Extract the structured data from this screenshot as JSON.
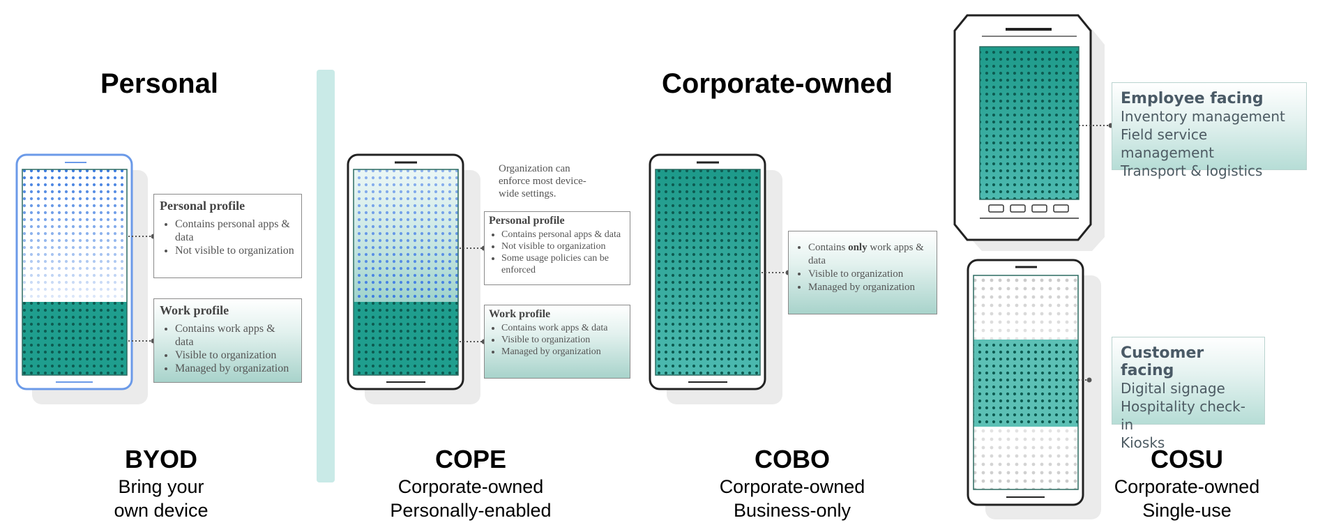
{
  "headings": {
    "personal": "Personal",
    "corporate": "Corporate-owned"
  },
  "modes": [
    {
      "code": "BYOD",
      "line1": "Bring your",
      "line2": "own device"
    },
    {
      "code": "COPE",
      "line1": "Corporate-owned",
      "line2": "Personally-enabled"
    },
    {
      "code": "COBO",
      "line1": "Corporate-owned",
      "line2": "Business-only"
    },
    {
      "code": "COSU",
      "line1": "Corporate-owned",
      "line2": "Single-use"
    }
  ],
  "byod": {
    "personal_profile": {
      "title": "Personal profile",
      "items": [
        "Contains personal apps & data",
        "Not visible to organization"
      ]
    },
    "work_profile": {
      "title": "Work profile",
      "items": [
        "Contains work apps & data",
        "Visible to organization",
        "Managed by organization"
      ]
    }
  },
  "cope": {
    "note": "Organization can enforce most device-wide settings.",
    "personal_profile": {
      "title": "Personal profile",
      "items": [
        "Contains personal apps & data",
        "Not visible to organization",
        "Some usage policies can be enforced"
      ]
    },
    "work_profile": {
      "title": "Work profile",
      "items": [
        "Contains work apps & data",
        "Visible to organization",
        "Managed by organization"
      ]
    }
  },
  "cobo": {
    "items_prefix": "Contains ",
    "items_bold": "only",
    "items_suffix": " work apps & data",
    "items": [
      "Visible to organization",
      "Managed by organization"
    ]
  },
  "cosu": {
    "employee": {
      "title": "Employee facing",
      "lines": [
        "Inventory management",
        "Field service management",
        "Transport & logistics"
      ]
    },
    "customer": {
      "title": "Customer facing",
      "lines": [
        "Digital signage",
        "Hospitality check-in",
        "Kiosks"
      ]
    }
  },
  "colors": {
    "teal": "#1f9e8e",
    "teal_dark": "#0f6f62",
    "blue": "#3d7ce0",
    "divider": "#c9eae7"
  }
}
